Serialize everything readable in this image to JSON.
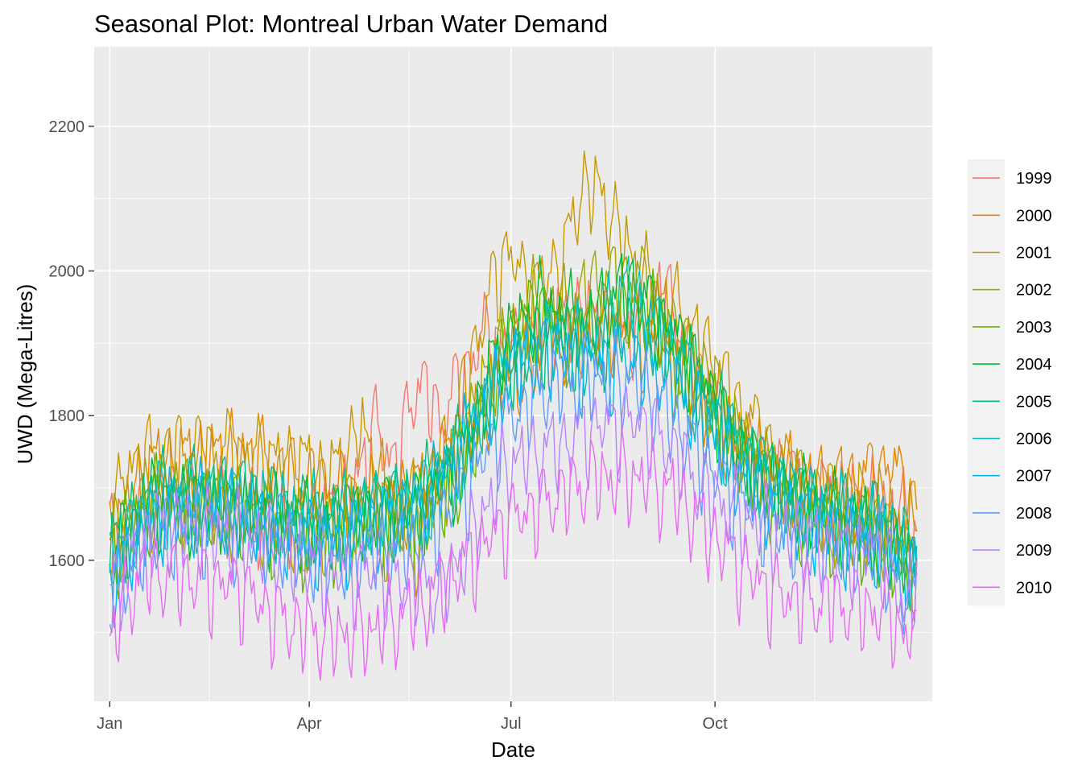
{
  "chart_data": {
    "type": "line",
    "title": "Seasonal Plot: Montreal Urban Water Demand",
    "xlabel": "Date",
    "ylabel": "UWD (Mega-Litres)",
    "x_ticks": [
      "Jan",
      "Apr",
      "Jul",
      "Oct"
    ],
    "x_tick_days": [
      1,
      91,
      182,
      274
    ],
    "x_minor_days": [
      46,
      136,
      228,
      319
    ],
    "x_range": [
      -6,
      372
    ],
    "y_ticks": [
      1600,
      1800,
      2000,
      2200
    ],
    "y_minor": [
      1500,
      1700,
      1900,
      2100
    ],
    "ylim": [
      1405,
      2310
    ],
    "grid": true,
    "legend_position": "right",
    "series": [
      {
        "name": "1999",
        "color": "#F8766D",
        "points": [
          [
            1,
            1640
          ],
          [
            30,
            1700
          ],
          [
            60,
            1680
          ],
          [
            90,
            1660
          ],
          [
            110,
            1700
          ],
          [
            120,
            1790
          ],
          [
            130,
            1740
          ],
          [
            140,
            1860
          ],
          [
            150,
            1800
          ],
          [
            160,
            1860
          ],
          [
            170,
            1920
          ],
          [
            180,
            1900
          ],
          [
            195,
            1920
          ],
          [
            210,
            1950
          ],
          [
            225,
            1940
          ],
          [
            240,
            1920
          ],
          [
            250,
            1990
          ],
          [
            265,
            1870
          ],
          [
            280,
            1780
          ],
          [
            300,
            1740
          ],
          [
            320,
            1700
          ],
          [
            340,
            1690
          ],
          [
            355,
            1680
          ],
          [
            365,
            1640
          ]
        ]
      },
      {
        "name": "2000",
        "color": "#E58700",
        "points": [
          [
            1,
            1650
          ],
          [
            20,
            1740
          ],
          [
            40,
            1750
          ],
          [
            60,
            1760
          ],
          [
            80,
            1730
          ],
          [
            90,
            1720
          ],
          [
            110,
            1700
          ],
          [
            130,
            1690
          ],
          [
            150,
            1730
          ],
          [
            165,
            1800
          ],
          [
            175,
            1850
          ],
          [
            190,
            1880
          ],
          [
            205,
            1900
          ],
          [
            220,
            1930
          ],
          [
            235,
            1930
          ],
          [
            250,
            1900
          ],
          [
            265,
            1850
          ],
          [
            280,
            1780
          ],
          [
            300,
            1720
          ],
          [
            320,
            1710
          ],
          [
            340,
            1720
          ],
          [
            355,
            1740
          ],
          [
            365,
            1670
          ]
        ]
      },
      {
        "name": "2001",
        "color": "#C99800",
        "points": [
          [
            1,
            1660
          ],
          [
            10,
            1740
          ],
          [
            30,
            1760
          ],
          [
            50,
            1760
          ],
          [
            70,
            1750
          ],
          [
            90,
            1740
          ],
          [
            100,
            1720
          ],
          [
            115,
            1790
          ],
          [
            125,
            1700
          ],
          [
            140,
            1680
          ],
          [
            155,
            1780
          ],
          [
            170,
            1950
          ],
          [
            180,
            2040
          ],
          [
            190,
            1980
          ],
          [
            205,
            2020
          ],
          [
            215,
            2130
          ],
          [
            225,
            2100
          ],
          [
            240,
            2000
          ],
          [
            255,
            1960
          ],
          [
            270,
            1900
          ],
          [
            285,
            1820
          ],
          [
            300,
            1760
          ],
          [
            320,
            1700
          ],
          [
            345,
            1690
          ],
          [
            365,
            1640
          ]
        ]
      },
      {
        "name": "2002",
        "color": "#A3A500",
        "points": [
          [
            1,
            1630
          ],
          [
            20,
            1700
          ],
          [
            40,
            1690
          ],
          [
            60,
            1680
          ],
          [
            80,
            1660
          ],
          [
            95,
            1630
          ],
          [
            110,
            1680
          ],
          [
            125,
            1650
          ],
          [
            140,
            1640
          ],
          [
            160,
            1780
          ],
          [
            175,
            1880
          ],
          [
            190,
            1960
          ],
          [
            205,
            1950
          ],
          [
            220,
            1990
          ],
          [
            240,
            2000
          ],
          [
            255,
            1930
          ],
          [
            270,
            1870
          ],
          [
            290,
            1750
          ],
          [
            310,
            1690
          ],
          [
            330,
            1660
          ],
          [
            350,
            1650
          ],
          [
            365,
            1600
          ]
        ]
      },
      {
        "name": "2003",
        "color": "#6BB100",
        "points": [
          [
            1,
            1620
          ],
          [
            20,
            1690
          ],
          [
            40,
            1690
          ],
          [
            60,
            1670
          ],
          [
            80,
            1650
          ],
          [
            100,
            1640
          ],
          [
            120,
            1660
          ],
          [
            140,
            1660
          ],
          [
            160,
            1720
          ],
          [
            180,
            1920
          ],
          [
            195,
            1960
          ],
          [
            210,
            1920
          ],
          [
            230,
            1960
          ],
          [
            245,
            1950
          ],
          [
            260,
            1860
          ],
          [
            280,
            1780
          ],
          [
            300,
            1700
          ],
          [
            320,
            1670
          ],
          [
            340,
            1640
          ],
          [
            365,
            1590
          ]
        ]
      },
      {
        "name": "2004",
        "color": "#00BA38",
        "points": [
          [
            1,
            1610
          ],
          [
            20,
            1690
          ],
          [
            40,
            1690
          ],
          [
            60,
            1680
          ],
          [
            80,
            1660
          ],
          [
            100,
            1650
          ],
          [
            120,
            1670
          ],
          [
            140,
            1680
          ],
          [
            160,
            1750
          ],
          [
            175,
            1890
          ],
          [
            195,
            1960
          ],
          [
            215,
            1930
          ],
          [
            235,
            1990
          ],
          [
            250,
            1940
          ],
          [
            265,
            1880
          ],
          [
            285,
            1760
          ],
          [
            305,
            1700
          ],
          [
            325,
            1670
          ],
          [
            345,
            1650
          ],
          [
            365,
            1600
          ]
        ]
      },
      {
        "name": "2005",
        "color": "#00BF7D",
        "points": [
          [
            1,
            1620
          ],
          [
            20,
            1700
          ],
          [
            40,
            1700
          ],
          [
            60,
            1700
          ],
          [
            80,
            1680
          ],
          [
            100,
            1670
          ],
          [
            120,
            1680
          ],
          [
            140,
            1690
          ],
          [
            160,
            1760
          ],
          [
            180,
            1870
          ],
          [
            200,
            1930
          ],
          [
            220,
            1910
          ],
          [
            240,
            1940
          ],
          [
            255,
            1900
          ],
          [
            270,
            1830
          ],
          [
            290,
            1740
          ],
          [
            310,
            1700
          ],
          [
            330,
            1680
          ],
          [
            345,
            1670
          ],
          [
            365,
            1620
          ]
        ]
      },
      {
        "name": "2006",
        "color": "#00C0B8",
        "points": [
          [
            1,
            1600
          ],
          [
            20,
            1690
          ],
          [
            40,
            1700
          ],
          [
            60,
            1690
          ],
          [
            80,
            1670
          ],
          [
            100,
            1660
          ],
          [
            120,
            1680
          ],
          [
            140,
            1690
          ],
          [
            160,
            1770
          ],
          [
            180,
            1880
          ],
          [
            200,
            1910
          ],
          [
            220,
            1890
          ],
          [
            232,
            1990
          ],
          [
            245,
            1940
          ],
          [
            260,
            1880
          ],
          [
            275,
            1800
          ],
          [
            295,
            1730
          ],
          [
            315,
            1680
          ],
          [
            335,
            1660
          ],
          [
            350,
            1650
          ],
          [
            365,
            1600
          ]
        ]
      },
      {
        "name": "2007",
        "color": "#00B4F0",
        "points": [
          [
            1,
            1580
          ],
          [
            20,
            1670
          ],
          [
            40,
            1680
          ],
          [
            60,
            1670
          ],
          [
            80,
            1650
          ],
          [
            100,
            1640
          ],
          [
            120,
            1660
          ],
          [
            140,
            1680
          ],
          [
            160,
            1760
          ],
          [
            180,
            1870
          ],
          [
            200,
            1900
          ],
          [
            220,
            1880
          ],
          [
            240,
            1890
          ],
          [
            255,
            1850
          ],
          [
            270,
            1790
          ],
          [
            290,
            1710
          ],
          [
            310,
            1670
          ],
          [
            330,
            1650
          ],
          [
            350,
            1640
          ],
          [
            365,
            1580
          ]
        ]
      },
      {
        "name": "2008",
        "color": "#619CFF",
        "points": [
          [
            1,
            1560
          ],
          [
            20,
            1640
          ],
          [
            40,
            1660
          ],
          [
            60,
            1650
          ],
          [
            80,
            1630
          ],
          [
            100,
            1610
          ],
          [
            120,
            1620
          ],
          [
            140,
            1630
          ],
          [
            160,
            1700
          ],
          [
            180,
            1800
          ],
          [
            200,
            1850
          ],
          [
            220,
            1860
          ],
          [
            240,
            1850
          ],
          [
            255,
            1800
          ],
          [
            270,
            1740
          ],
          [
            290,
            1680
          ],
          [
            310,
            1640
          ],
          [
            330,
            1630
          ],
          [
            350,
            1620
          ],
          [
            360,
            1540
          ],
          [
            365,
            1600
          ]
        ]
      },
      {
        "name": "2009",
        "color": "#B983FF",
        "points": [
          [
            1,
            1570
          ],
          [
            20,
            1650
          ],
          [
            40,
            1650
          ],
          [
            60,
            1640
          ],
          [
            80,
            1620
          ],
          [
            100,
            1590
          ],
          [
            120,
            1590
          ],
          [
            140,
            1580
          ],
          [
            150,
            1560
          ],
          [
            165,
            1640
          ],
          [
            180,
            1740
          ],
          [
            200,
            1760
          ],
          [
            220,
            1790
          ],
          [
            240,
            1800
          ],
          [
            255,
            1760
          ],
          [
            270,
            1700
          ],
          [
            290,
            1660
          ],
          [
            310,
            1640
          ],
          [
            330,
            1620
          ],
          [
            350,
            1620
          ],
          [
            360,
            1530
          ],
          [
            365,
            1600
          ]
        ]
      },
      {
        "name": "2010",
        "color": "#E76BF3",
        "points": [
          [
            1,
            1500
          ],
          [
            15,
            1590
          ],
          [
            40,
            1580
          ],
          [
            60,
            1570
          ],
          [
            75,
            1530
          ],
          [
            90,
            1510
          ],
          [
            100,
            1500
          ],
          [
            120,
            1510
          ],
          [
            140,
            1540
          ],
          [
            160,
            1600
          ],
          [
            180,
            1660
          ],
          [
            200,
            1690
          ],
          [
            220,
            1720
          ],
          [
            240,
            1720
          ],
          [
            255,
            1700
          ],
          [
            270,
            1650
          ],
          [
            285,
            1600
          ],
          [
            300,
            1560
          ],
          [
            320,
            1550
          ],
          [
            340,
            1540
          ],
          [
            355,
            1530
          ],
          [
            360,
            1490
          ],
          [
            365,
            1530
          ]
        ]
      }
    ]
  }
}
